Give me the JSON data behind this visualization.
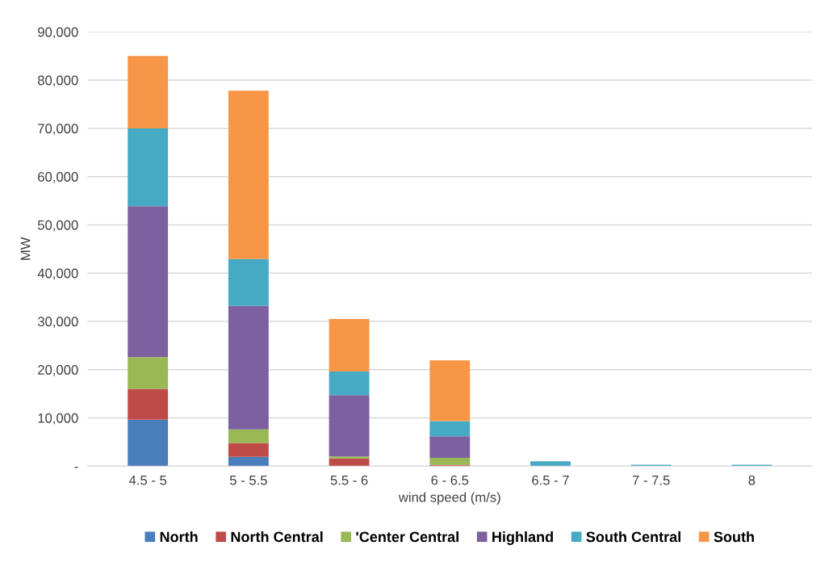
{
  "chart_data": {
    "type": "bar",
    "stacked": true,
    "xlabel": "wind speed (m/s)",
    "ylabel": "MW",
    "categories": [
      "4.5 - 5",
      "5 - 5.5",
      "5.5 - 6",
      "6 - 6.5",
      "6.5 - 7",
      "7 - 7.5",
      "8"
    ],
    "series": [
      {
        "name": "North",
        "color": "#4a7ebb",
        "values": [
          9600,
          1900,
          0,
          0,
          0,
          0,
          0
        ]
      },
      {
        "name": "North Central",
        "color": "#be4b48",
        "values": [
          6400,
          2900,
          1600,
          300,
          0,
          0,
          0
        ]
      },
      {
        "name": "'Center Central",
        "color": "#98b954",
        "values": [
          6600,
          2800,
          400,
          1400,
          0,
          0,
          0
        ]
      },
      {
        "name": "Highland",
        "color": "#7d60a0",
        "values": [
          31300,
          25600,
          12700,
          4500,
          0,
          0,
          0
        ]
      },
      {
        "name": "South Central",
        "color": "#46aac5",
        "values": [
          16100,
          9700,
          4900,
          3100,
          1000,
          300,
          300
        ]
      },
      {
        "name": "South",
        "color": "#f79646",
        "values": [
          15000,
          34900,
          10900,
          12600,
          0,
          0,
          0
        ]
      }
    ],
    "ylim": [
      0,
      90000
    ],
    "yticks": [
      {
        "value": 0,
        "label": "-"
      },
      {
        "value": 10000,
        "label": "10,000"
      },
      {
        "value": 20000,
        "label": "20,000"
      },
      {
        "value": 30000,
        "label": "30,000"
      },
      {
        "value": 40000,
        "label": "40,000"
      },
      {
        "value": 50000,
        "label": "50,000"
      },
      {
        "value": 60000,
        "label": "60,000"
      },
      {
        "value": 70000,
        "label": "70,000"
      },
      {
        "value": 80000,
        "label": "80,000"
      },
      {
        "value": 90000,
        "label": "90,000"
      }
    ],
    "grid": "y",
    "legend": "bottom"
  }
}
